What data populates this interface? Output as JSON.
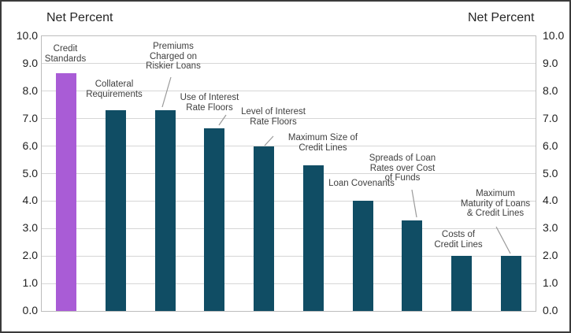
{
  "chart_data": {
    "type": "bar",
    "title_left": "Net Percent",
    "title_right": "Net Percent",
    "ylabel_left": "Net Percent",
    "ylabel_right": "Net Percent",
    "ylim": [
      0.0,
      10.0
    ],
    "ytick_step": 1.0,
    "ytick_labels": [
      "10.0",
      "9.0",
      "8.0",
      "7.0",
      "6.0",
      "5.0",
      "4.0",
      "3.0",
      "2.0",
      "1.0",
      "0.0"
    ],
    "grid": "horizontal-major",
    "legend": "none",
    "categories": [
      "Credit Standards",
      "Collateral Requirements",
      "Premiums Charged on Riskier Loans",
      "Use of Interest Rate Floors",
      "Level of Interest Rate Floors",
      "Maximum Size of Credit Lines",
      "Loan Covenants",
      "Spreads of Loan Rates over Cost of Funds",
      "Costs of Credit Lines",
      "Maximum Maturity of Loans & Credit Lines"
    ],
    "category_display_labels": [
      "Credit\nStandards",
      "Collateral\nRequirements",
      "Premiums\nCharged on\nRiskier Loans",
      "Use of Interest\nRate Floors",
      "Level of Interest\nRate Floors",
      "Maximum Size of\nCredit Lines",
      "Loan Covenants",
      "Spreads of Loan\nRates over Cost\nof Funds",
      "Costs of\nCredit Lines",
      "Maximum\nMaturity of Loans\n& Credit Lines"
    ],
    "values": [
      8.65,
      7.3,
      7.3,
      6.65,
      6.0,
      5.3,
      4.0,
      3.3,
      2.0,
      2.0
    ],
    "bar_colors": [
      "#a95cd6",
      "#104d64",
      "#104d64",
      "#104d64",
      "#104d64",
      "#104d64",
      "#104d64",
      "#104d64",
      "#104d64",
      "#104d64"
    ],
    "highlight_color": "#a95cd6",
    "default_bar_color": "#104d64",
    "gridline_color": "#d6d6d6",
    "leader_line_color": "#9a9a9a"
  }
}
